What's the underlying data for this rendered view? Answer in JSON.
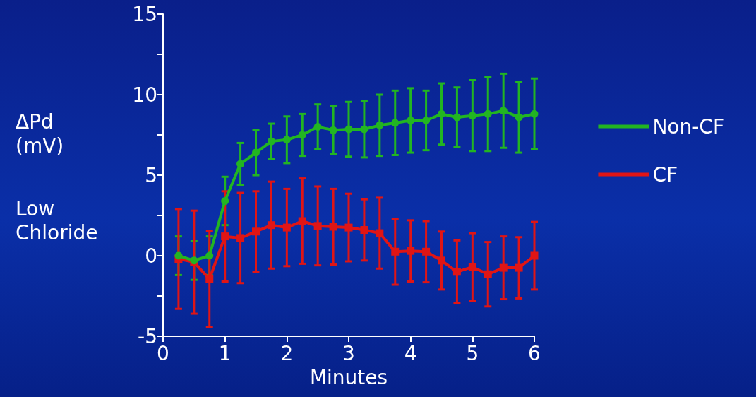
{
  "chart_data": {
    "type": "line",
    "xlabel": "Minutes",
    "ylabel": "ΔPd\n(mV)",
    "annotations": [
      "Low\nChloride"
    ],
    "x": [
      0.25,
      0.5,
      0.75,
      1,
      1.25,
      1.5,
      1.75,
      2,
      2.25,
      2.5,
      2.75,
      3,
      3.25,
      3.5,
      3.75,
      4,
      4.25,
      4.5,
      4.75,
      5,
      5.25,
      5.5,
      5.75,
      6
    ],
    "series": [
      {
        "name": "Non-CF",
        "color": "#22b522",
        "marker": "circle",
        "values": [
          0,
          -0.3,
          0,
          3.4,
          5.7,
          6.4,
          7.1,
          7.2,
          7.5,
          8.0,
          7.8,
          7.85,
          7.85,
          8.1,
          8.25,
          8.4,
          8.4,
          8.8,
          8.6,
          8.7,
          8.8,
          9.0,
          8.6,
          8.8
        ],
        "errors": [
          1.2,
          1.2,
          1.2,
          1.5,
          1.3,
          1.4,
          1.1,
          1.45,
          1.3,
          1.4,
          1.5,
          1.7,
          1.75,
          1.9,
          2.0,
          2.0,
          1.85,
          1.9,
          1.85,
          2.2,
          2.3,
          2.3,
          2.2,
          2.2
        ]
      },
      {
        "name": "CF",
        "color": "#e01515",
        "marker": "square",
        "values": [
          -0.2,
          -0.4,
          -1.45,
          1.2,
          1.1,
          1.5,
          1.9,
          1.75,
          2.15,
          1.85,
          1.8,
          1.75,
          1.6,
          1.4,
          0.25,
          0.3,
          0.25,
          -0.3,
          -1.0,
          -0.7,
          -1.15,
          -0.75,
          -0.75,
          0
        ],
        "errors": [
          3.1,
          3.2,
          3.0,
          2.8,
          2.8,
          2.5,
          2.7,
          2.4,
          2.65,
          2.45,
          2.35,
          2.1,
          1.9,
          2.2,
          2.05,
          1.9,
          1.9,
          1.8,
          1.95,
          2.1,
          2.0,
          1.95,
          1.9,
          2.1
        ]
      }
    ],
    "xlim": [
      0,
      6
    ],
    "xticks": [
      0,
      1,
      2,
      3,
      4,
      5,
      6
    ],
    "ylim": [
      -5,
      15
    ],
    "yticks": [
      -5,
      {
        "value": -2.5,
        "label": null
      },
      0,
      {
        "value": 2.5,
        "label": null
      },
      5,
      {
        "value": 7.5,
        "label": null
      },
      10,
      {
        "value": 12.5,
        "label": null
      },
      15
    ],
    "grid": false,
    "legend": "right",
    "line_style": "solid"
  }
}
